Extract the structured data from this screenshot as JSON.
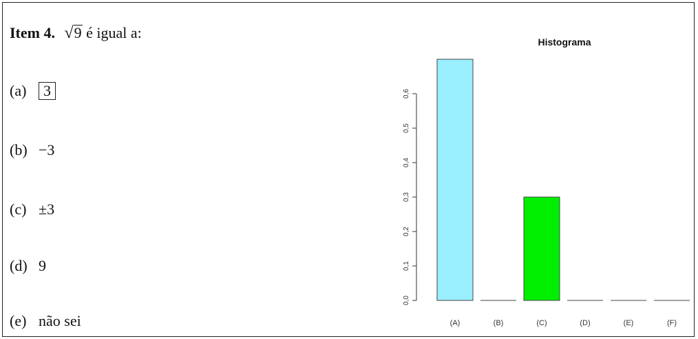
{
  "question": {
    "label": "Item 4.",
    "radicand": "9",
    "text": "é igual a:"
  },
  "options": [
    {
      "letter": "(a)",
      "value": "3",
      "boxed": true
    },
    {
      "letter": "(b)",
      "value": "−3",
      "boxed": false
    },
    {
      "letter": "(c)",
      "value": "±3",
      "boxed": false
    },
    {
      "letter": "(d)",
      "value": "9",
      "boxed": false
    },
    {
      "letter": "(e)",
      "value": "não sei",
      "boxed": false
    }
  ],
  "chart_data": {
    "type": "bar",
    "title": "Histograma",
    "categories": [
      "(A)",
      "(B)",
      "(C)",
      "(D)",
      "(E)",
      "(F)"
    ],
    "values": [
      0.7,
      0.0,
      0.3,
      0.0,
      0.0,
      0.0
    ],
    "colors": [
      "#99EEFF",
      "#cccccc",
      "#00EE00",
      "#cccccc",
      "#cccccc",
      "#cccccc"
    ],
    "yticks": [
      "0,0",
      "0,1",
      "0,2",
      "0,3",
      "0,4",
      "0,5",
      "0,6"
    ],
    "ylim": [
      0,
      0.7
    ],
    "grid": false,
    "xlabel": "",
    "ylabel": ""
  }
}
